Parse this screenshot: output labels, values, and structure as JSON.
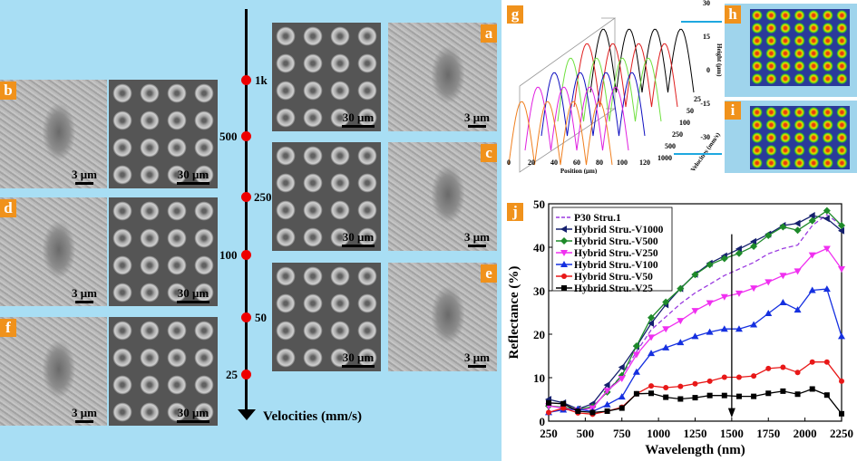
{
  "panels": {
    "a": "a",
    "b": "b",
    "c": "c",
    "d": "d",
    "e": "e",
    "f": "f",
    "g": "g",
    "h": "h",
    "i": "i",
    "j": "j"
  },
  "scale_bars": {
    "small": "3 μm",
    "large": "30 μm"
  },
  "velocity_axis": {
    "label": "Velocities (mm/s)",
    "ticks": [
      "1k",
      "500",
      "250",
      "100",
      "50",
      "25"
    ]
  },
  "panel_g": {
    "xlabel": "Position (μm)",
    "xticks": [
      "0",
      "20",
      "40",
      "60",
      "80",
      "100",
      "120"
    ],
    "zlabel": "Height (μm)",
    "zticks": [
      "30",
      "15",
      "0",
      "-15",
      "-30"
    ],
    "ylabel": "Velocities (mm/s)",
    "yticks": [
      "25",
      "50",
      "100",
      "250",
      "500",
      "1000"
    ],
    "colors": [
      "#000000",
      "#e02020",
      "#70e040",
      "#1010c0",
      "#e020e0",
      "#f08020"
    ]
  },
  "chart_data": {
    "type": "line",
    "title": "",
    "xlabel": "Wavelength (nm)",
    "ylabel": "Reflectance (%)",
    "xlim": [
      250,
      2250
    ],
    "ylim": [
      0,
      50
    ],
    "xticks": [
      "250",
      "500",
      "750",
      "1000",
      "1250",
      "1500",
      "1750",
      "2000",
      "2250"
    ],
    "yticks": [
      "0",
      "10",
      "20",
      "30",
      "40",
      "50"
    ],
    "legend_position": "top-left",
    "annotation": "downward arrow at 1500 nm",
    "x": [
      250,
      350,
      450,
      550,
      650,
      750,
      850,
      950,
      1050,
      1150,
      1250,
      1350,
      1450,
      1550,
      1650,
      1750,
      1850,
      1950,
      2050,
      2150,
      2250
    ],
    "series": [
      {
        "name": "P30 Stru.1",
        "color": "#9a3ae0",
        "marker": "none",
        "dash": true,
        "values": [
          3.5,
          3,
          2.5,
          3,
          7,
          10.5,
          16,
          21,
          24,
          27,
          29.5,
          31.5,
          33.5,
          35,
          36.5,
          38.5,
          39.7,
          40.5,
          45,
          47.5,
          45
        ]
      },
      {
        "name": "Hybrid Stru.-V1000",
        "color": "#15206e",
        "marker": "tri-left",
        "values": [
          5,
          4.2,
          2.8,
          4,
          8.3,
          12.4,
          17.2,
          22.5,
          26.8,
          30.5,
          33.8,
          36.3,
          38,
          39.6,
          41.3,
          43,
          45,
          45.5,
          47.3,
          46.6,
          43.8
        ]
      },
      {
        "name": "Hybrid Stru.-V500",
        "color": "#1e8a2a",
        "marker": "diamond",
        "values": [
          3.5,
          3.2,
          2.7,
          3.3,
          6.7,
          10.5,
          17.3,
          23.8,
          27.4,
          30.5,
          33.7,
          36,
          37.4,
          38.6,
          40.2,
          42.7,
          44.7,
          43.9,
          46.1,
          48.4,
          45
        ]
      },
      {
        "name": "Hybrid Stru.-V250",
        "color": "#f030f0",
        "marker": "tri-down",
        "values": [
          3.5,
          3,
          2.5,
          3,
          7,
          9.8,
          15.3,
          19.3,
          21.2,
          23.1,
          25.4,
          27.2,
          28.6,
          29.4,
          30.6,
          32,
          33.5,
          34.5,
          38.2,
          39.7,
          35
        ]
      },
      {
        "name": "Hybrid Stru.-V100",
        "color": "#1530e0",
        "marker": "tri-up",
        "values": [
          2,
          2.6,
          2.8,
          2.2,
          3.8,
          5.6,
          11.3,
          15.6,
          16.9,
          18.1,
          19.5,
          20.5,
          21.2,
          21.2,
          22.2,
          24.8,
          27.3,
          25.6,
          30.1,
          30.4,
          19.5
        ]
      },
      {
        "name": "Hybrid Stru.-V50",
        "color": "#e81818",
        "marker": "circle",
        "values": [
          2,
          3,
          1.9,
          1.6,
          2.3,
          3.2,
          6.3,
          8.1,
          7.7,
          8,
          8.6,
          9.2,
          10.1,
          10.1,
          10.4,
          12.1,
          12.4,
          11.2,
          13.6,
          13.6,
          9.2
        ]
      },
      {
        "name": "Hybrid Stru.-V25",
        "color": "#000000",
        "marker": "square",
        "values": [
          4.2,
          4,
          2.3,
          2,
          2.3,
          3,
          6.3,
          6.4,
          5.5,
          5.1,
          5.4,
          5.9,
          5.9,
          5.7,
          5.7,
          6.4,
          6.9,
          6.2,
          7.4,
          6,
          1.7
        ]
      }
    ]
  }
}
